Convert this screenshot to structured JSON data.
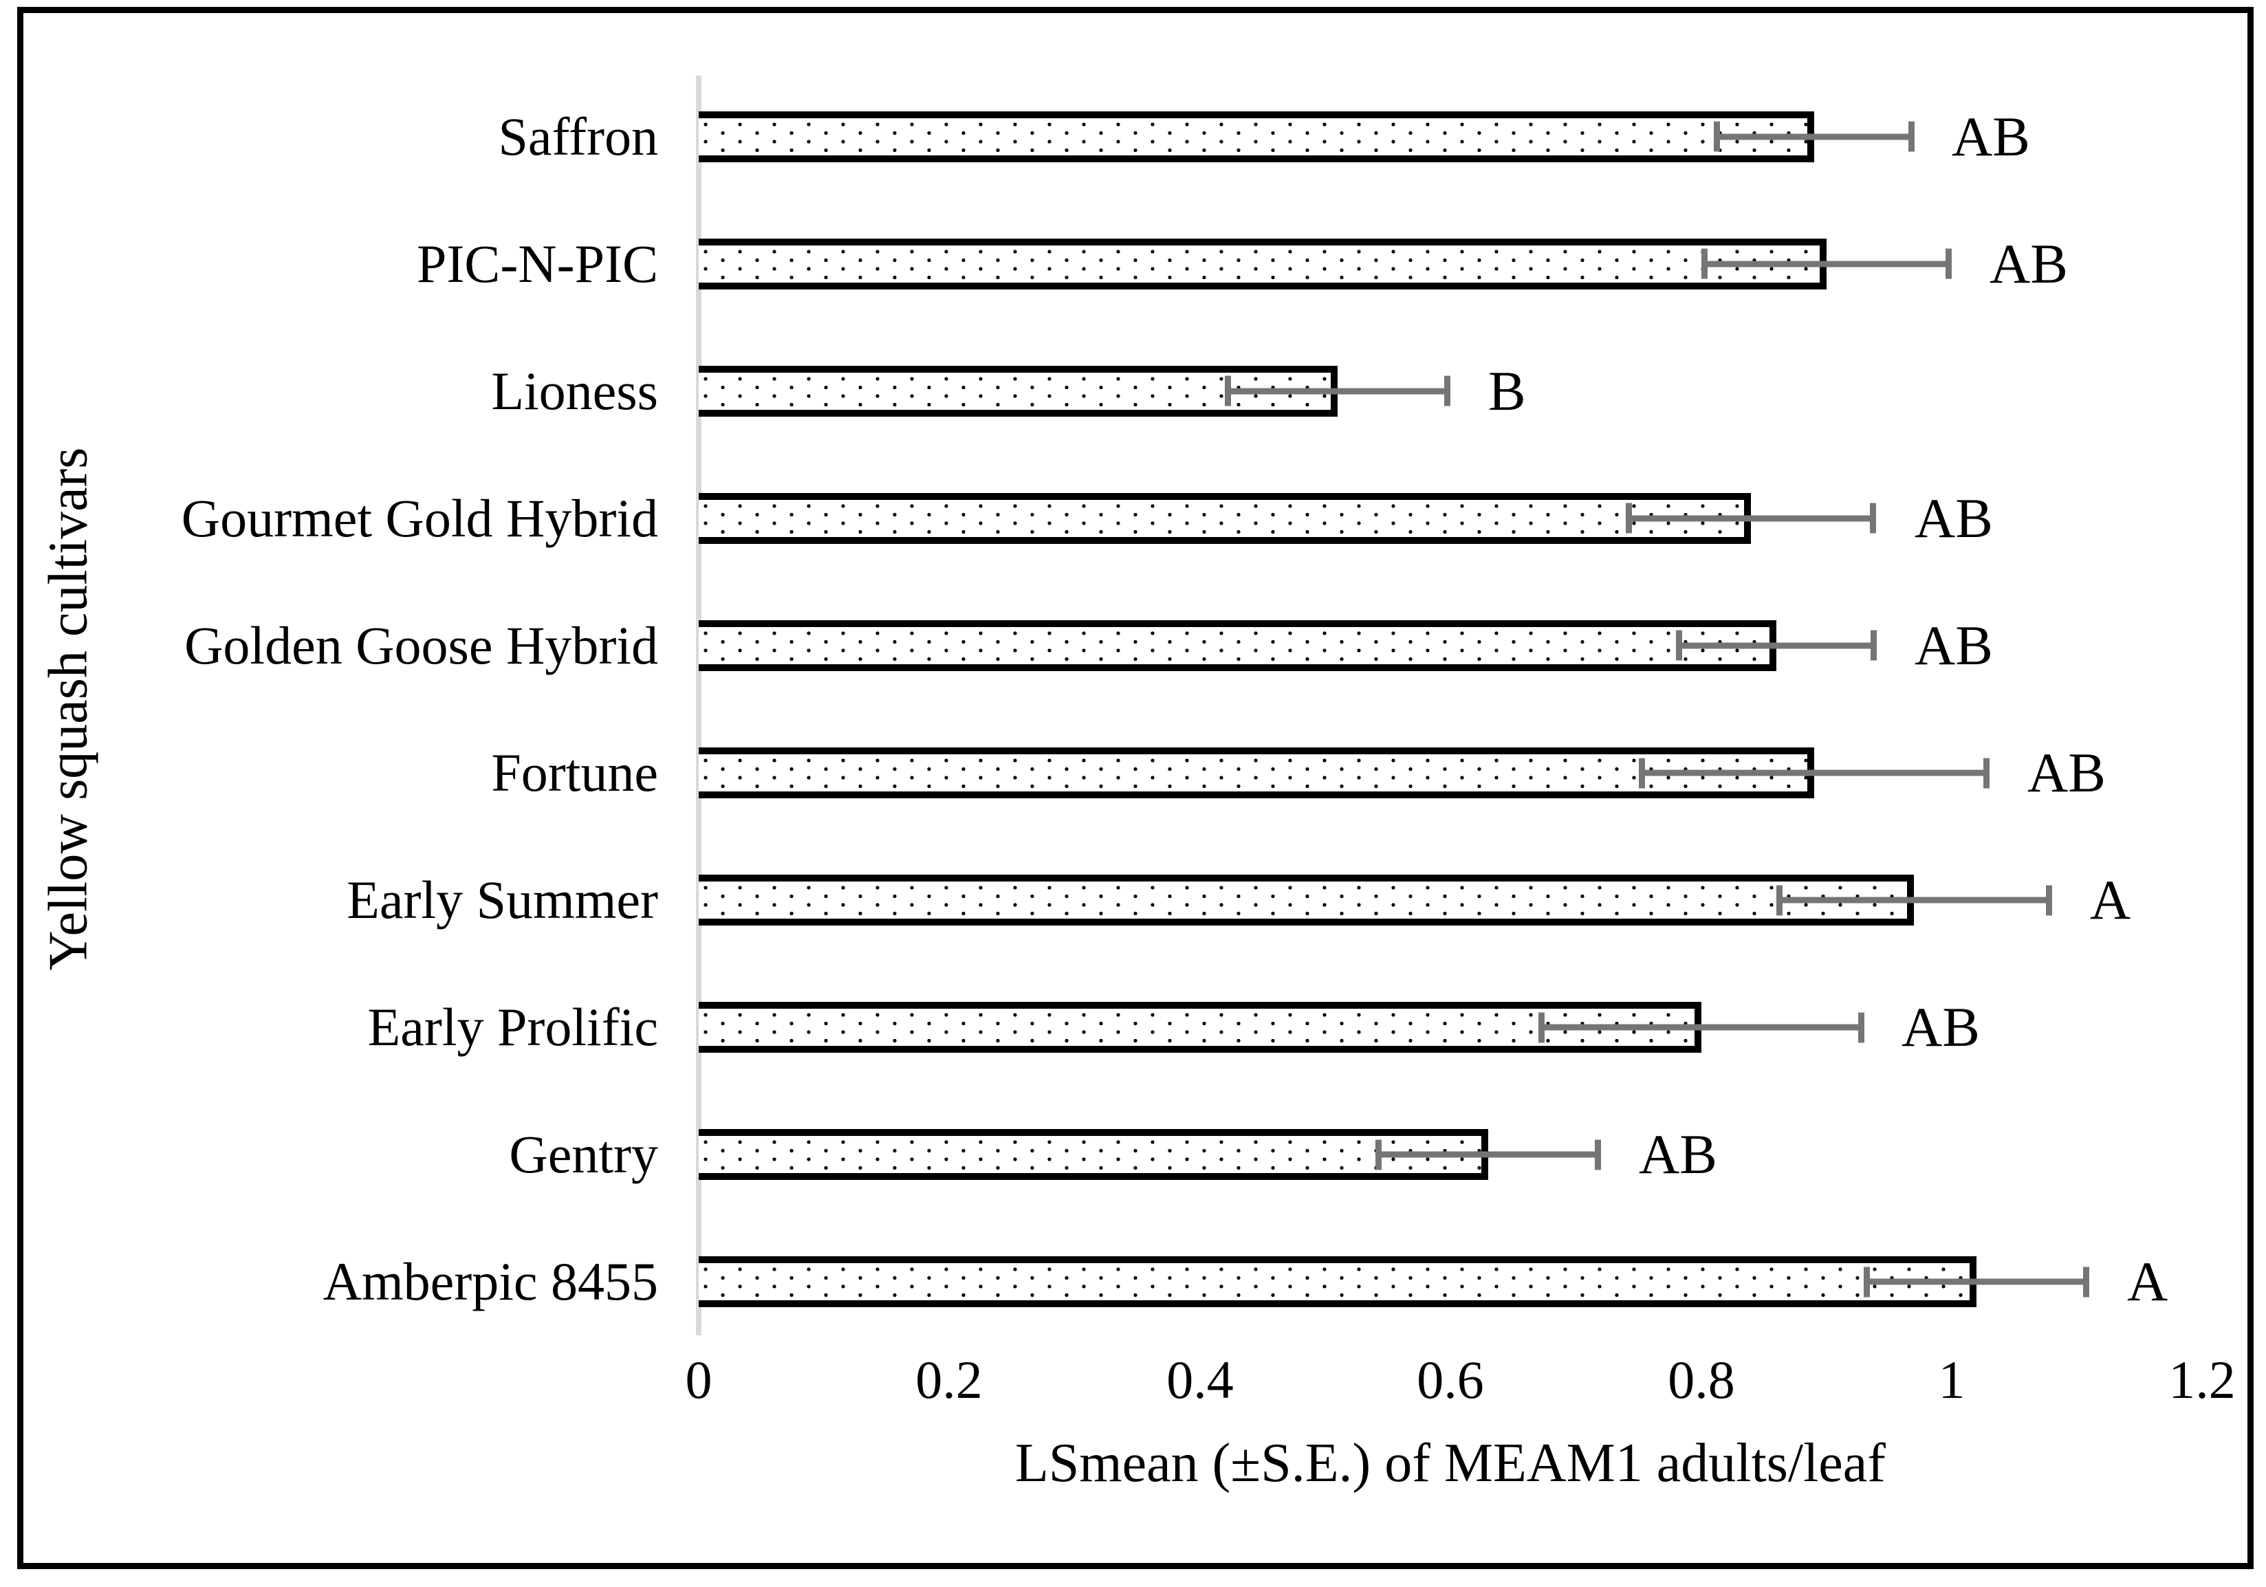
{
  "figure": {
    "background": "#ffffff",
    "frame_color": "#000000"
  },
  "chart_data": {
    "type": "bar",
    "orientation": "horizontal",
    "title": "",
    "xlabel": "LSmean (±S.E.) of MEAM1 adults/leaf",
    "ylabel": "Yellow squash cultivars",
    "xlim": [
      0,
      1.2
    ],
    "xtick_labels": [
      "0",
      "0.2",
      "0.4",
      "0.6",
      "0.8",
      "1",
      "1.2"
    ],
    "grid": false,
    "legend": false,
    "categories": [
      "Saffron",
      "PIC-N-PIC",
      "Lioness",
      "Gourmet Gold Hybrid",
      "Golden Goose Hybrid",
      "Fortune",
      "Early Summer",
      "Early Prolific",
      "Gentry",
      "Amberpic 8455"
    ],
    "series": [
      {
        "name": "LSmean of MEAM1 adults/leaf",
        "values": [
          0.89,
          0.9,
          0.51,
          0.84,
          0.86,
          0.89,
          0.97,
          0.8,
          0.63,
          1.02
        ]
      }
    ],
    "errors_se": [
      0.08,
      0.1,
      0.09,
      0.1,
      0.08,
      0.14,
      0.11,
      0.13,
      0.09,
      0.09
    ],
    "sig_letters": [
      "AB",
      "AB",
      "B",
      "AB",
      "AB",
      "AB",
      "A",
      "AB",
      "AB",
      "A"
    ],
    "colors": {
      "bar_fill": "#ffffff",
      "bar_border": "#000000",
      "pattern_dots": "#000000",
      "error_bar": "#757575",
      "axis_line": "#d9d9d9",
      "text": "#000000"
    }
  }
}
